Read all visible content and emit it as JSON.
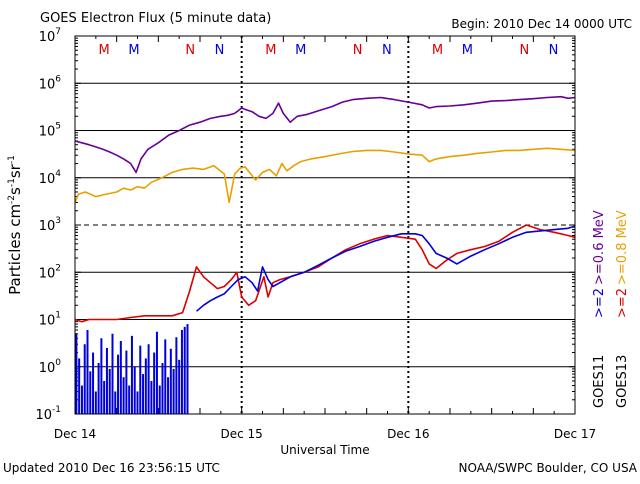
{
  "chart_data": {
    "type": "line",
    "title": "GOES Electron Flux (5 minute data)",
    "begin_label": "Begin: 2010 Dec 14 0000 UTC",
    "ylabel_main": "Particles cm",
    "ylabel_exp1": "-2",
    "ylabel_mid1": "s",
    "ylabel_exp2": "-1",
    "ylabel_mid2": "sr",
    "ylabel_exp3": "-1",
    "xlabel": "Universal Time",
    "footer_left": "Updated 2010 Dec 16 23:56:15 UTC",
    "footer_right": "NOAA/SWPC Boulder, CO USA",
    "y_scale": "log",
    "ylim": [
      0.1,
      10000000
    ],
    "xlim_hours": [
      0,
      72
    ],
    "x_ticks": [
      {
        "label": "Dec 14",
        "hour": 0
      },
      {
        "label": "Dec 15",
        "hour": 24
      },
      {
        "label": "Dec 16",
        "hour": 48
      },
      {
        "label": "Dec 17",
        "hour": 72
      }
    ],
    "y_ticks": [
      {
        "value": 0.1,
        "base": "10",
        "exp": "-1"
      },
      {
        "value": 1,
        "base": "10",
        "exp": "0"
      },
      {
        "value": 10,
        "base": "10",
        "exp": "1"
      },
      {
        "value": 100,
        "base": "10",
        "exp": "2"
      },
      {
        "value": 1000,
        "base": "10",
        "exp": "3"
      },
      {
        "value": 10000,
        "base": "10",
        "exp": "4"
      },
      {
        "value": 100000,
        "base": "10",
        "exp": "5"
      },
      {
        "value": 1000000,
        "base": "10",
        "exp": "6"
      },
      {
        "value": 10000000,
        "base": "10",
        "exp": "7"
      }
    ],
    "threshold_line": 1000,
    "markers": [
      {
        "letter": "M",
        "hour": 4.2,
        "color": "#dd0000"
      },
      {
        "letter": "M",
        "hour": 8.5,
        "color": "#0000dd"
      },
      {
        "letter": "N",
        "hour": 16.6,
        "color": "#dd0000"
      },
      {
        "letter": "N",
        "hour": 20.8,
        "color": "#0000dd"
      },
      {
        "letter": "M",
        "hour": 28.2,
        "color": "#dd0000"
      },
      {
        "letter": "M",
        "hour": 32.5,
        "color": "#0000dd"
      },
      {
        "letter": "N",
        "hour": 40.7,
        "color": "#dd0000"
      },
      {
        "letter": "N",
        "hour": 44.9,
        "color": "#0000dd"
      },
      {
        "letter": "M",
        "hour": 52.2,
        "color": "#dd0000"
      },
      {
        "letter": "M",
        "hour": 56.5,
        "color": "#0000dd"
      },
      {
        "letter": "N",
        "hour": 64.7,
        "color": "#dd0000"
      },
      {
        "letter": "N",
        "hour": 68.9,
        "color": "#0000dd"
      }
    ],
    "dashed_vertical_hours": [
      24,
      48
    ],
    "legend_right_top": [
      {
        "text": ">=0.8  MeV",
        "color": "#e8a000"
      },
      {
        "text": ">=0.6  MeV",
        "color": "#660099"
      }
    ],
    "legend_right_bottom": [
      {
        "text": ">=2",
        "color": "#dd0000"
      },
      {
        "text": ">=2",
        "color": "#0000dd"
      }
    ],
    "satellites": [
      "GOES13",
      "GOES11"
    ],
    "series": [
      {
        "name": "GOES11 >=0.6 MeV",
        "color": "#660099",
        "x": [
          0,
          1,
          2,
          3,
          4,
          5,
          6,
          7,
          8,
          8.8,
          9.5,
          10.5,
          12,
          13.5,
          15,
          16.5,
          18,
          19.5,
          21,
          22,
          23,
          24,
          24.5,
          25.5,
          26.5,
          27.5,
          28.5,
          29.3,
          30,
          31,
          32,
          33.5,
          35,
          37,
          38.5,
          40,
          42,
          44,
          46,
          48,
          50,
          51,
          52,
          54,
          56,
          58,
          60,
          62,
          64,
          66,
          68,
          70,
          71,
          72
        ],
        "y": [
          60000,
          55000,
          50000,
          45000,
          40000,
          35000,
          30000,
          25000,
          20000,
          13000,
          25000,
          40000,
          55000,
          80000,
          100000,
          130000,
          150000,
          180000,
          200000,
          210000,
          230000,
          300000,
          280000,
          250000,
          200000,
          180000,
          230000,
          380000,
          230000,
          150000,
          200000,
          220000,
          260000,
          320000,
          400000,
          450000,
          480000,
          500000,
          450000,
          400000,
          350000,
          300000,
          320000,
          330000,
          350000,
          380000,
          420000,
          430000,
          450000,
          470000,
          500000,
          520000,
          480000,
          500000
        ]
      },
      {
        "name": "GOES11 >=0.8 MeV",
        "color": "#e8a000",
        "x": [
          0,
          0.5,
          1.5,
          3,
          4.5,
          6,
          7,
          8,
          9,
          10,
          11,
          12.5,
          14,
          15.5,
          17,
          18.5,
          20,
          21.5,
          22.2,
          23,
          23.8,
          24.5,
          25.3,
          26,
          27,
          28,
          29,
          29.8,
          30.5,
          31.5,
          32.5,
          34,
          36,
          38,
          40,
          42,
          44,
          46,
          48,
          50,
          51,
          52,
          54,
          56,
          58,
          60,
          62,
          64,
          66,
          68,
          70,
          72
        ],
        "y": [
          3000,
          4500,
          5000,
          4000,
          4500,
          5000,
          6000,
          5500,
          6500,
          6000,
          8000,
          10000,
          13000,
          15000,
          16000,
          15000,
          18000,
          12000,
          3000,
          12000,
          16000,
          17000,
          12000,
          9000,
          13000,
          15000,
          11000,
          20000,
          14000,
          18000,
          22000,
          25000,
          28000,
          32000,
          36000,
          38000,
          38000,
          35000,
          32000,
          30000,
          22000,
          25000,
          28000,
          30000,
          33000,
          35000,
          38000,
          38000,
          40000,
          42000,
          40000,
          38000
        ]
      },
      {
        "name": "GOES13 >=2 MeV",
        "color": "#dd0000",
        "x": [
          0,
          1,
          2,
          4,
          6,
          8,
          10,
          12,
          14,
          15.5,
          16.5,
          17.5,
          18.5,
          19.5,
          20.5,
          21.5,
          22.5,
          23.3,
          24,
          25,
          26,
          27.2,
          27.8,
          28.5,
          29.5,
          31,
          33,
          35,
          37,
          39,
          41,
          43,
          45,
          47,
          49,
          50,
          51,
          52,
          53.5,
          55,
          57,
          59,
          61,
          63,
          65,
          67,
          69,
          71,
          72
        ],
        "y": [
          10,
          9,
          10,
          10,
          10,
          11,
          12,
          12,
          12,
          14,
          40,
          130,
          80,
          60,
          45,
          50,
          70,
          100,
          30,
          20,
          25,
          80,
          30,
          60,
          70,
          80,
          100,
          130,
          200,
          300,
          400,
          500,
          600,
          550,
          500,
          300,
          150,
          120,
          180,
          250,
          300,
          350,
          450,
          700,
          1000,
          800,
          700,
          600,
          550
        ]
      },
      {
        "name": "GOES11 >=2 MeV",
        "color": "#0000dd",
        "x": [
          17.5,
          18.5,
          19.5,
          20.5,
          21.5,
          22.5,
          23.5,
          24.5,
          25.5,
          26.3,
          27,
          27.8,
          28.5,
          29.5,
          31,
          33,
          35,
          37,
          39,
          41,
          43,
          45,
          47,
          49,
          50,
          51,
          52,
          53.5,
          55,
          57,
          59,
          61,
          63,
          65,
          67,
          69,
          71,
          72
        ],
        "y": [
          15,
          20,
          25,
          30,
          35,
          50,
          70,
          80,
          60,
          40,
          130,
          70,
          50,
          60,
          80,
          100,
          140,
          200,
          280,
          350,
          450,
          550,
          650,
          650,
          600,
          400,
          250,
          200,
          150,
          220,
          300,
          400,
          550,
          700,
          750,
          800,
          850,
          950
        ]
      },
      {
        "name": "GOES11 >=2 MeV low-level spikes",
        "color": "#0000dd",
        "style": "bars",
        "x": [
          0.2,
          0.6,
          1.0,
          1.4,
          1.8,
          2.2,
          2.6,
          3.0,
          3.4,
          3.8,
          4.2,
          4.6,
          5.0,
          5.4,
          5.8,
          6.2,
          6.6,
          7.0,
          7.4,
          7.8,
          8.2,
          8.6,
          9.0,
          9.4,
          9.8,
          10.2,
          10.6,
          11.0,
          11.4,
          11.8,
          12.2,
          12.6,
          13.0,
          13.4,
          13.8,
          14.2,
          14.6,
          15.0,
          15.4,
          15.8,
          16.2
        ],
        "y": [
          5,
          1.5,
          0.4,
          3,
          6,
          0.8,
          2,
          0.3,
          1.2,
          4,
          0.5,
          2.5,
          0.9,
          5,
          0.3,
          1.8,
          3.5,
          0.6,
          2.2,
          0.4,
          4.5,
          1,
          0.3,
          2.8,
          0.7,
          1.5,
          3,
          0.5,
          2,
          5.5,
          0.4,
          1.2,
          3.8,
          0.6,
          2.4,
          0.9,
          4.2,
          1.4,
          6,
          7,
          8
        ]
      }
    ]
  }
}
